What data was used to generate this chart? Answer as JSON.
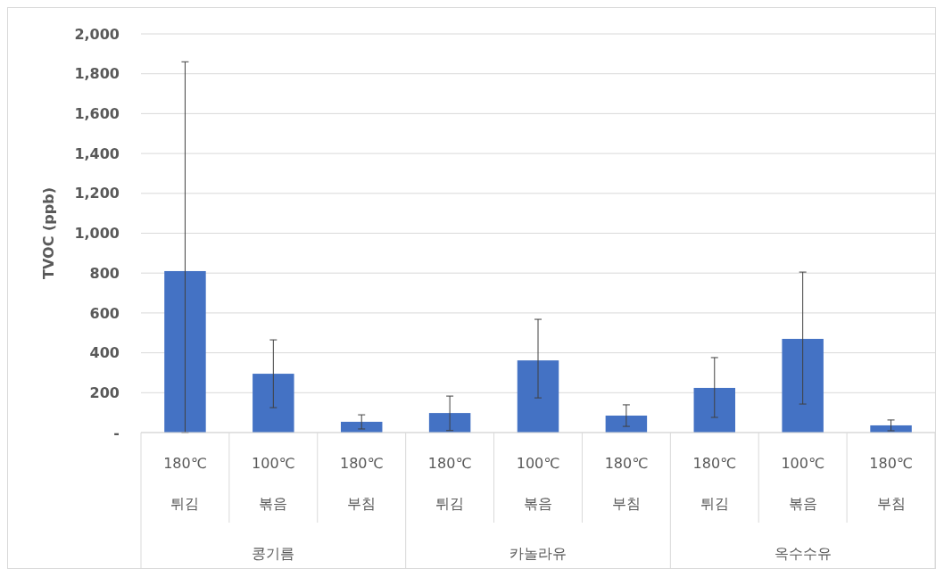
{
  "chart_data": {
    "type": "bar",
    "ylabel": "TVOC (ppb)",
    "categories": [
      "180℃\n튀김",
      "100℃\n볶음",
      "180℃\n부침",
      "180℃\n튀김",
      "100℃\n볶음",
      "180℃\n부침",
      "180℃\n튀김",
      "100℃\n볶음",
      "180℃\n부침"
    ],
    "values": [
      810,
      295,
      54,
      98,
      362,
      85,
      224,
      470,
      36
    ],
    "errors": [
      [
        0,
        1860
      ],
      [
        125,
        465
      ],
      [
        18,
        89
      ],
      [
        10,
        183
      ],
      [
        174,
        568
      ],
      [
        31,
        139
      ],
      [
        76,
        376
      ],
      [
        143,
        805
      ],
      [
        9,
        63
      ]
    ],
    "color": "#4472c4",
    "annotations": [
      "콩기름",
      "카놀라유",
      "옥수수유"
    ],
    "ylim": [
      0,
      2000
    ],
    "yticks": [
      {
        "value": 0,
        "label": "-"
      },
      {
        "value": 200,
        "label": "200"
      },
      {
        "value": 400,
        "label": "400"
      },
      {
        "value": 600,
        "label": "600"
      },
      {
        "value": 800,
        "label": "800"
      },
      {
        "value": 1000,
        "label": "1,000"
      },
      {
        "value": 1200,
        "label": "1,200"
      },
      {
        "value": 1400,
        "label": "1,400"
      },
      {
        "value": 1600,
        "label": "1,600"
      },
      {
        "value": 1800,
        "label": "1,800"
      },
      {
        "value": 2000,
        "label": "2,000"
      }
    ],
    "grid": "y"
  }
}
